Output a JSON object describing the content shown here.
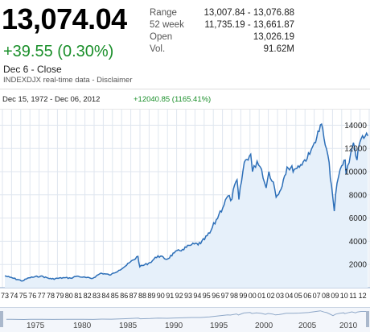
{
  "quote": {
    "price": "13,074.04",
    "change": "+39.55 (0.30%)",
    "close_label": "Dec 6 - Close",
    "source": "INDEXDJX real-time data - ",
    "disclaimer": "Disclaimer"
  },
  "stats": [
    {
      "label": "Range",
      "value": "13,007.84 - 13,076.88"
    },
    {
      "label": "52 week",
      "value": "11,735.19 - 13,661.87"
    },
    {
      "label": "Open",
      "value": "13,026.19"
    },
    {
      "label": "Vol.",
      "value": "91.62M"
    }
  ],
  "range_bar": {
    "dates": "Dec 15, 1972  -  Dec 06, 2012",
    "delta": "+12040.85 (1165.41%)"
  },
  "colors": {
    "line": "#2d6fb8",
    "fill": "#e6f0fa",
    "positive": "#1a8f2a"
  },
  "chart_data": {
    "type": "area",
    "x_tick_labels": [
      "73",
      "74",
      "75",
      "76",
      "77",
      "78",
      "79",
      "80",
      "81",
      "82",
      "83",
      "84",
      "85",
      "86",
      "87",
      "88",
      "89",
      "90",
      "91",
      "92",
      "93",
      "94",
      "95",
      "96",
      "97",
      "98",
      "99",
      "00",
      "01",
      "02",
      "03",
      "04",
      "05",
      "06",
      "07",
      "08",
      "09",
      "10",
      "11",
      "12"
    ],
    "y_tick_labels": [
      "2000",
      "4000",
      "6000",
      "8000",
      "10000",
      "12000",
      "14000"
    ],
    "ylim": [
      0,
      15000
    ],
    "grid": true,
    "series": [
      {
        "x": [
          1972.95,
          1973.5,
          1974.9,
          1975.6,
          1976.9,
          1978.1,
          1979.5,
          1980.2,
          1980.9,
          1981.5,
          1982.6,
          1983.5,
          1984.6,
          1985.5,
          1986.2,
          1987.6,
          1987.8,
          1988.9,
          1989.8,
          1990.8,
          1991.6,
          1992.5,
          1993.5,
          1994.5,
          1995.5,
          1996.5,
          1997.5,
          1997.8,
          1998.5,
          1998.7,
          1999.3,
          2000.0,
          2000.2,
          2000.7,
          2001.2,
          2001.7,
          2002.0,
          2002.5,
          2002.8,
          2003.2,
          2003.6,
          2004.0,
          2004.8,
          2005.5,
          2006.5,
          2007.0,
          2007.8,
          2008.2,
          2008.5,
          2008.9,
          2009.2,
          2009.5,
          2010.0,
          2010.4,
          2010.5,
          2011.0,
          2011.3,
          2011.7,
          2011.9,
          2012.3,
          2012.9
        ],
        "y": [
          1020,
          900,
          580,
          850,
          1000,
          750,
          860,
          820,
          1000,
          900,
          800,
          1250,
          1100,
          1500,
          1850,
          2700,
          1800,
          2150,
          2750,
          2450,
          3000,
          3300,
          3700,
          3800,
          4700,
          6300,
          7900,
          7500,
          9300,
          7600,
          10800,
          11500,
          10000,
          10900,
          10200,
          8600,
          10000,
          9100,
          7800,
          8300,
          9300,
          10400,
          10200,
          10600,
          11500,
          12500,
          14100,
          12300,
          11400,
          8800,
          6600,
          9000,
          10500,
          11000,
          9800,
          11600,
          12500,
          11000,
          12200,
          13100,
          13074
        ]
      }
    ]
  },
  "navigator": {
    "years": [
      "1975",
      "1980",
      "1985",
      "1990",
      "1995",
      "2000",
      "2005",
      "2010"
    ]
  }
}
